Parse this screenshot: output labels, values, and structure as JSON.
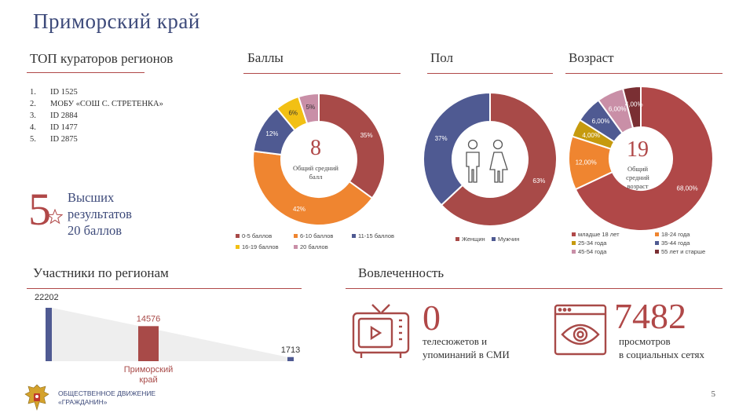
{
  "title": "Приморский край",
  "top_curators": {
    "heading": "ТОП кураторов регионов",
    "items": [
      {
        "num": "1.",
        "label": "ID 1525"
      },
      {
        "num": "2.",
        "label": "МОБУ «СОШ С. СТРЕТЕНКА»"
      },
      {
        "num": "3.",
        "label": "ID 2884"
      },
      {
        "num": "4.",
        "label": "ID 1477"
      },
      {
        "num": "5.",
        "label": "ID 2875"
      }
    ]
  },
  "best_results": {
    "number": "5",
    "line1": "Высших",
    "line2": "результатов",
    "line3": "20 баллов"
  },
  "chart_data": [
    {
      "type": "pie",
      "title": "Баллы",
      "categories": [
        "0-5 баллов",
        "6-10 баллов",
        "11-15 баллов",
        "16-19 баллов",
        "20 баллов"
      ],
      "values": [
        35,
        42,
        12,
        6,
        5
      ],
      "labels": [
        "35%",
        "42%",
        "12%",
        "6%",
        "5%"
      ],
      "colors": [
        "#a84a48",
        "#ef8530",
        "#4f5a92",
        "#f2c014",
        "#c98fa7"
      ],
      "center_value": "8",
      "center_label_line1": "Общий средний",
      "center_label_line2": "балл"
    },
    {
      "type": "pie",
      "title": "Пол",
      "categories": [
        "Женщин",
        "Мужчин"
      ],
      "values": [
        63,
        37
      ],
      "labels": [
        "63%",
        "37%"
      ],
      "colors": [
        "#a84a48",
        "#4f5a92"
      ]
    },
    {
      "type": "pie",
      "title": "Возраст",
      "categories": [
        "младше 18 лет",
        "18-24 года",
        "25-34 года",
        "35-44 года",
        "45-54 года",
        "55 лет и старше"
      ],
      "values": [
        68,
        12,
        4,
        6,
        6,
        4
      ],
      "labels": [
        "68,00%",
        "12,00%",
        "4,00%",
        "6,00%",
        "6,00%",
        "4,00%"
      ],
      "colors": [
        "#b04848",
        "#ef8530",
        "#c69a0e",
        "#4f5a92",
        "#c98fa7",
        "#7a2f33"
      ],
      "center_value": "19",
      "center_label_line1": "Общий",
      "center_label_line2": "средний",
      "center_label_line3": "возраст"
    },
    {
      "type": "bar",
      "title": "Участники по регионам",
      "categories": [
        "",
        "Приморский край",
        ""
      ],
      "values": [
        22202,
        14576,
        1713
      ],
      "labels": [
        "22202",
        "14576",
        "1713"
      ],
      "highlight_label": "Приморский край",
      "colors": [
        "#4f5a92",
        "#a84a48",
        "#4f5a92"
      ]
    }
  ],
  "engagement": {
    "heading": "Вовлеченность",
    "tv": {
      "value": "0",
      "line1": "телесюжетов и",
      "line2": "упоминаний в СМИ"
    },
    "views": {
      "value": "7482",
      "line1": "просмотров",
      "line2": "в социальных сетях"
    }
  },
  "footer": {
    "line1": "ОБЩЕСТВЕННОЕ ДВИЖЕНИЕ",
    "line2": "«ГРАЖДАНИН»",
    "page": "5"
  },
  "colors": {
    "accent": "#b04848",
    "title": "#3d4a7a",
    "navy": "#4f5a92",
    "orange": "#ef8530"
  }
}
